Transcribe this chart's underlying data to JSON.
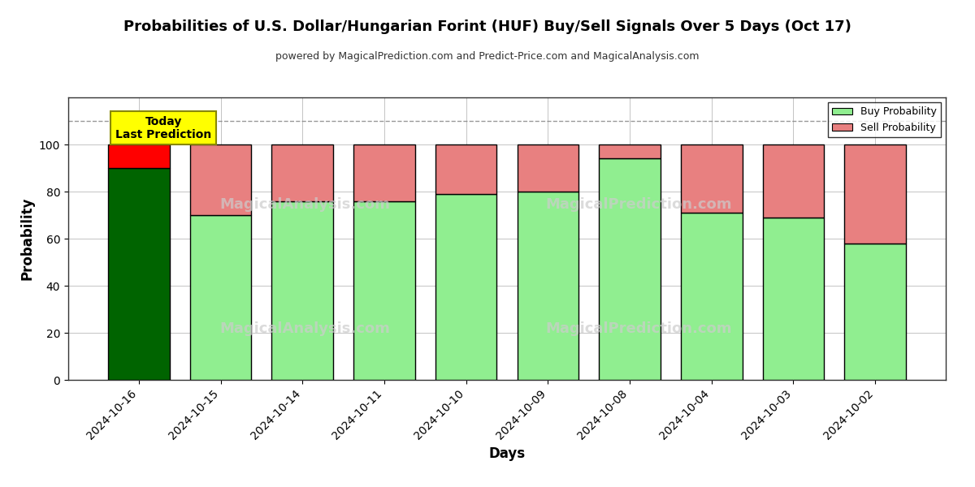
{
  "title": "Probabilities of U.S. Dollar/Hungarian Forint (HUF) Buy/Sell Signals Over 5 Days (Oct 17)",
  "subtitle": "powered by MagicalPrediction.com and Predict-Price.com and MagicalAnalysis.com",
  "xlabel": "Days",
  "ylabel": "Probability",
  "categories": [
    "2024-10-16",
    "2024-10-15",
    "2024-10-14",
    "2024-10-11",
    "2024-10-10",
    "2024-10-09",
    "2024-10-08",
    "2024-10-04",
    "2024-10-03",
    "2024-10-02"
  ],
  "buy_values": [
    90,
    70,
    76,
    76,
    79,
    80,
    94,
    71,
    69,
    58
  ],
  "sell_values": [
    10,
    30,
    24,
    24,
    21,
    20,
    6,
    29,
    31,
    42
  ],
  "today_buy_color": "#006400",
  "today_sell_color": "#ff0000",
  "buy_color": "#90EE90",
  "sell_color": "#E88080",
  "bar_edge_color": "#000000",
  "background_color": "#ffffff",
  "grid_color": "#aaaaaa",
  "ylim": [
    0,
    120
  ],
  "dashed_line_y": 110,
  "today_label": "Today\nLast Prediction",
  "legend_buy": "Buy Probability",
  "legend_sell": "Sell Probability"
}
